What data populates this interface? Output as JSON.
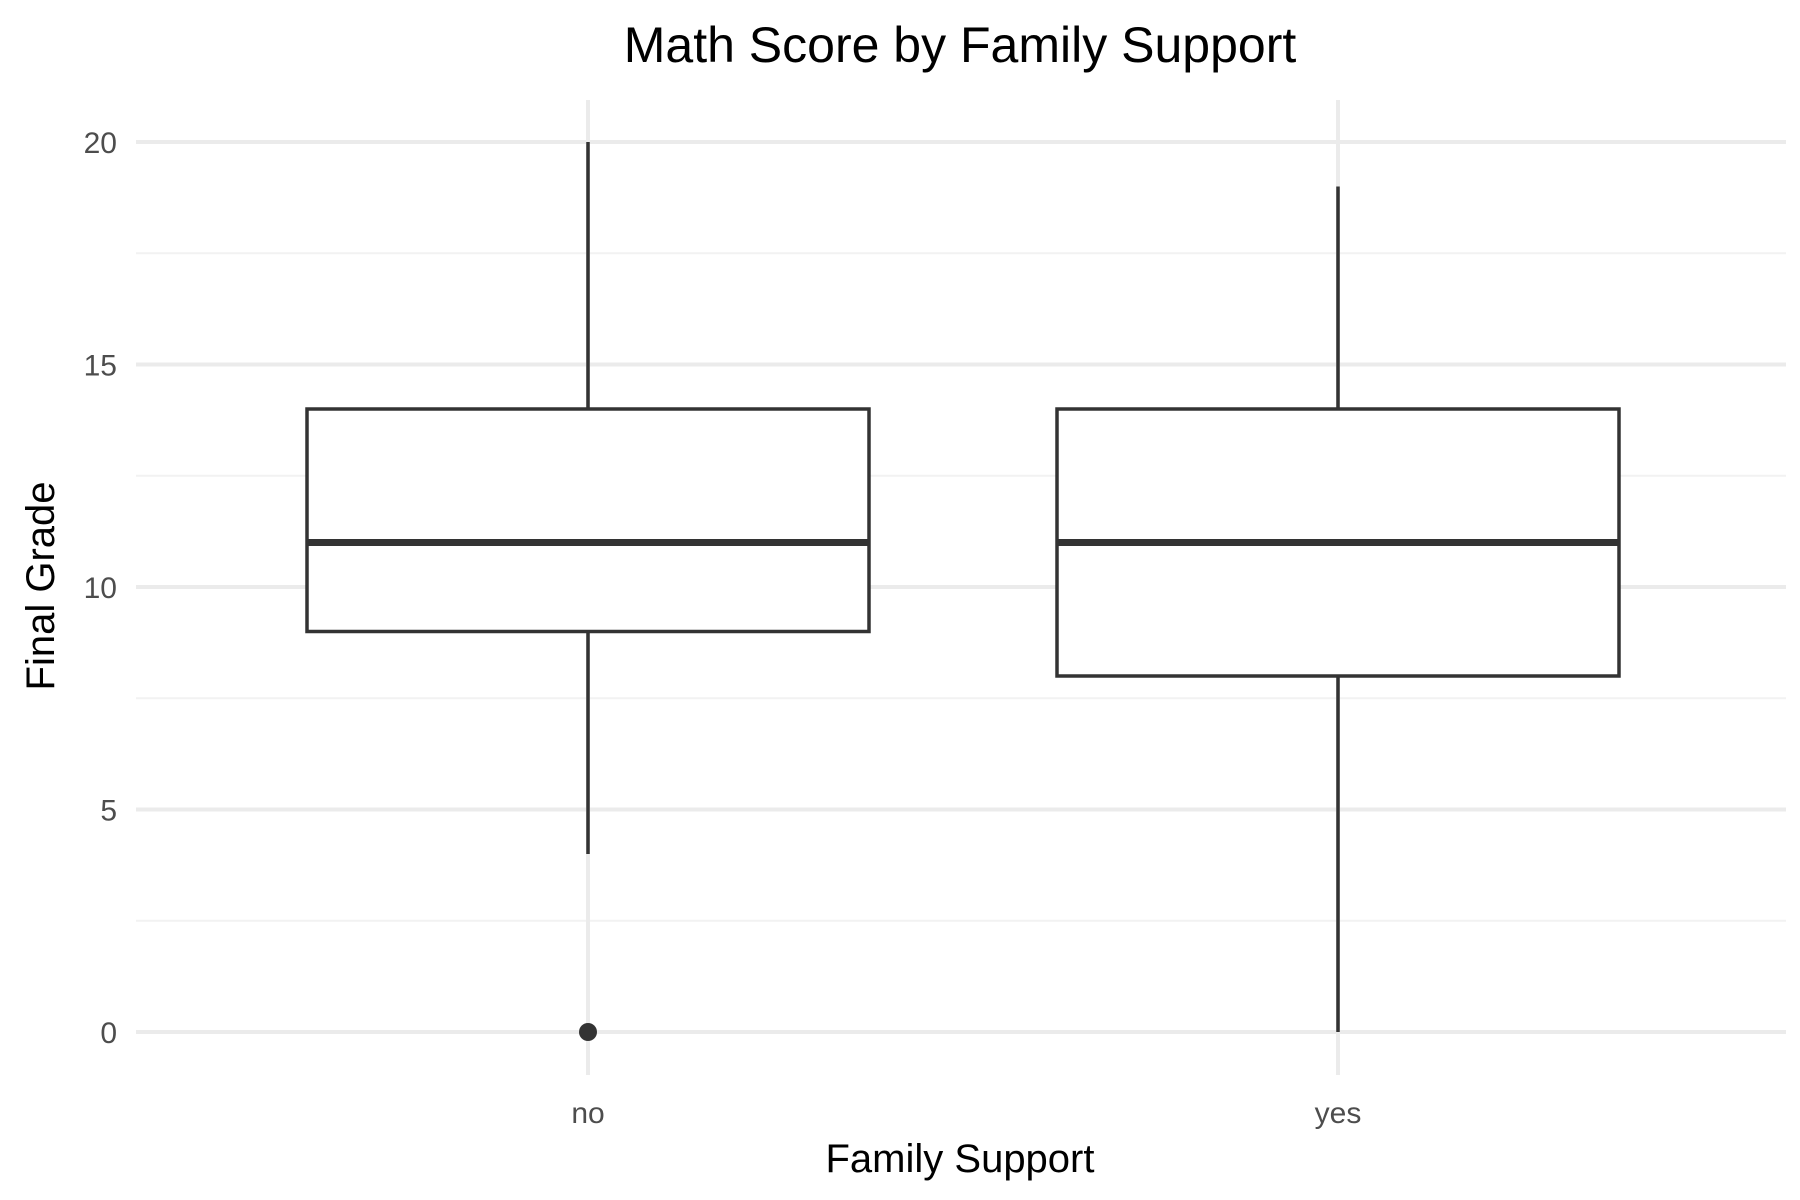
{
  "chart_data": {
    "type": "boxplot",
    "title": "Math Score by Family Support",
    "xlabel": "Family Support",
    "ylabel": "Final Grade",
    "ylim": [
      -1,
      21
    ],
    "y_ticks": [
      0,
      5,
      10,
      15,
      20
    ],
    "grid": true,
    "categories": [
      "no",
      "yes"
    ],
    "boxes": [
      {
        "category": "no",
        "whisker_low": 4,
        "q1": 9,
        "median": 11,
        "q3": 14,
        "whisker_high": 20,
        "outliers": [
          0
        ]
      },
      {
        "category": "yes",
        "whisker_low": 0,
        "q1": 8,
        "median": 11,
        "q3": 14,
        "whisker_high": 19,
        "outliers": []
      }
    ],
    "colors": {
      "box_line": "#333333",
      "box_fill": "#ffffff",
      "grid_major": "#ebebeb",
      "grid_minor": "#f2f2f2",
      "tick_text": "#4d4d4d"
    }
  }
}
